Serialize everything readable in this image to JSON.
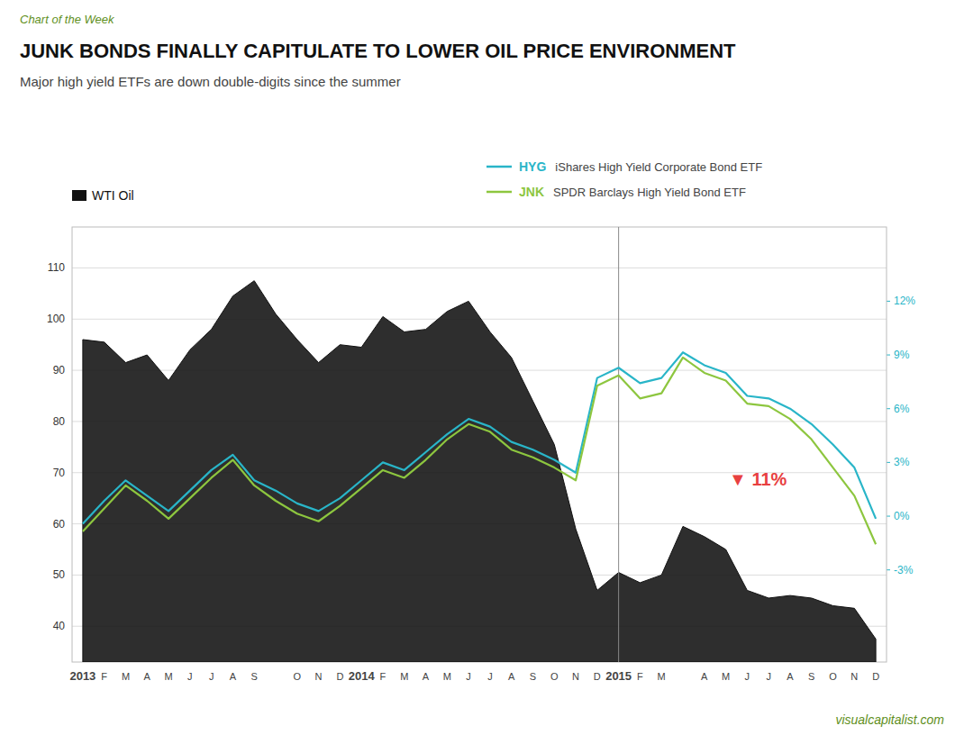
{
  "chart_data": {
    "type": "line",
    "title": "JUNK BONDS FINALLY CAPITULATE TO LOWER OIL PRICE ENVIRONMENT",
    "subtitle": "Major high yield ETFs are down double-digits since the summer",
    "kicker": "Chart of the Week",
    "source": "visualcapitalist.com",
    "categories": [
      "2013",
      "F",
      "M",
      "A",
      "M",
      "J",
      "J",
      "A",
      "S",
      null,
      "O",
      "N",
      "D",
      "2014",
      "F",
      "M",
      "A",
      "M",
      "J",
      "J",
      "A",
      "S",
      "O",
      "N",
      "D",
      "2015",
      "F",
      "M",
      null,
      "A",
      "M",
      "J",
      "J",
      "A",
      "S",
      "O",
      "N",
      "D"
    ],
    "series": [
      {
        "name": "WTI Oil",
        "type": "area",
        "color": "#111111",
        "values": [
          96.0,
          95.5,
          91.5,
          93.0,
          88.0,
          94.0,
          98.0,
          104.5,
          107.5,
          101.0,
          96.0,
          91.5,
          95.0,
          94.5,
          100.5,
          97.5,
          98.0,
          101.5,
          103.5,
          97.5,
          92.5,
          84.0,
          75.5,
          59.0,
          47.0,
          50.5,
          48.5,
          50.0,
          59.5,
          57.5,
          55.0,
          47.0,
          45.5,
          46.0,
          45.5,
          44.0,
          43.5,
          37.5
        ]
      },
      {
        "name": "HYG",
        "description": "iShares High Yield Corporate Bond ETF",
        "type": "line",
        "color": "#29b5c8",
        "values": [
          60.0,
          64.5,
          68.5,
          65.5,
          62.5,
          66.5,
          70.5,
          73.5,
          68.5,
          66.5,
          64.0,
          62.5,
          65.0,
          68.5,
          72.0,
          70.5,
          74.0,
          77.5,
          80.5,
          79.0,
          76.0,
          74.5,
          72.5,
          70.0,
          88.5,
          90.5,
          87.5,
          88.5,
          93.5,
          91.0,
          89.5,
          85.0,
          84.5,
          82.5,
          79.5,
          75.5,
          71.0,
          61.0
        ]
      },
      {
        "name": "JNK",
        "description": "SPDR Barclays High Yield Bond ETF",
        "type": "line",
        "color": "#8dc63f",
        "values": [
          58.5,
          63.0,
          67.5,
          64.5,
          61.0,
          65.0,
          69.0,
          72.5,
          67.5,
          64.5,
          62.0,
          60.5,
          63.5,
          67.0,
          70.5,
          69.0,
          72.5,
          76.5,
          79.5,
          78.0,
          74.5,
          73.0,
          71.0,
          68.5,
          87.0,
          89.0,
          84.5,
          85.5,
          92.5,
          89.5,
          88.0,
          83.5,
          83.0,
          80.5,
          76.5,
          71.0,
          65.5,
          56.0
        ]
      }
    ],
    "ylim": [
      33,
      118
    ],
    "yticks": [
      40,
      50,
      60,
      70,
      80,
      90,
      100,
      110
    ],
    "y2lim": [
      -8.142857142857142,
      16.142857142857142
    ],
    "y2ticks": [
      {
        "value": 12,
        "label": "12%"
      },
      {
        "value": 9,
        "label": "9%"
      },
      {
        "value": 6,
        "label": "6%"
      },
      {
        "value": 3,
        "label": "3%"
      },
      {
        "value": 0,
        "label": "0%"
      },
      {
        "value": -3,
        "label": "-3%"
      }
    ],
    "annotations": [
      {
        "text": "▼ 11%",
        "x": 31.5,
        "y": 68.5,
        "color": "#e84040"
      }
    ],
    "grid": true,
    "legend": "top"
  }
}
